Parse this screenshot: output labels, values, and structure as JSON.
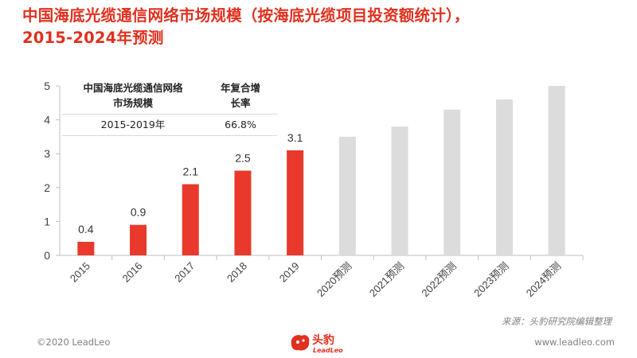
{
  "title": {
    "line1": "中国海底光缆通信网络市场规模（按海底光缆项目投资额统计），",
    "line2": "2015-2024年预测"
  },
  "cagr_table": {
    "col1_header_line1": "中国海底光缆通信网络",
    "col1_header_line2": "市场规模",
    "col2_header_line1": "年复合增",
    "col2_header_line2": "长率",
    "period": "2015-2019年",
    "rate": "66.8%"
  },
  "chart_data": {
    "type": "bar",
    "categories": [
      "2015",
      "2016",
      "2017",
      "2018",
      "2019",
      "2020预测",
      "2021预测",
      "2022预测",
      "2023预测",
      "2024预测"
    ],
    "values": [
      0.4,
      0.9,
      2.1,
      2.5,
      3.1,
      3.5,
      3.8,
      4.3,
      4.6,
      5.0
    ],
    "data_labels": [
      "0.4",
      "0.9",
      "2.1",
      "2.5",
      "3.1",
      "",
      "",
      "",
      "",
      ""
    ],
    "ylim": [
      0,
      5
    ],
    "yticks": [
      "0",
      "1",
      "2",
      "3",
      "4",
      "5"
    ],
    "actual_color": "#e8392c",
    "forecast_color": "#dcdcdc",
    "grid": false
  },
  "source_note": "来源：头豹研究院编辑整理",
  "copyright": "©2020 LeadLeo",
  "website": "www.leadleo.com",
  "logo": {
    "cn": "头豹",
    "en": "LeadLeo",
    "color": "#e0301e"
  }
}
